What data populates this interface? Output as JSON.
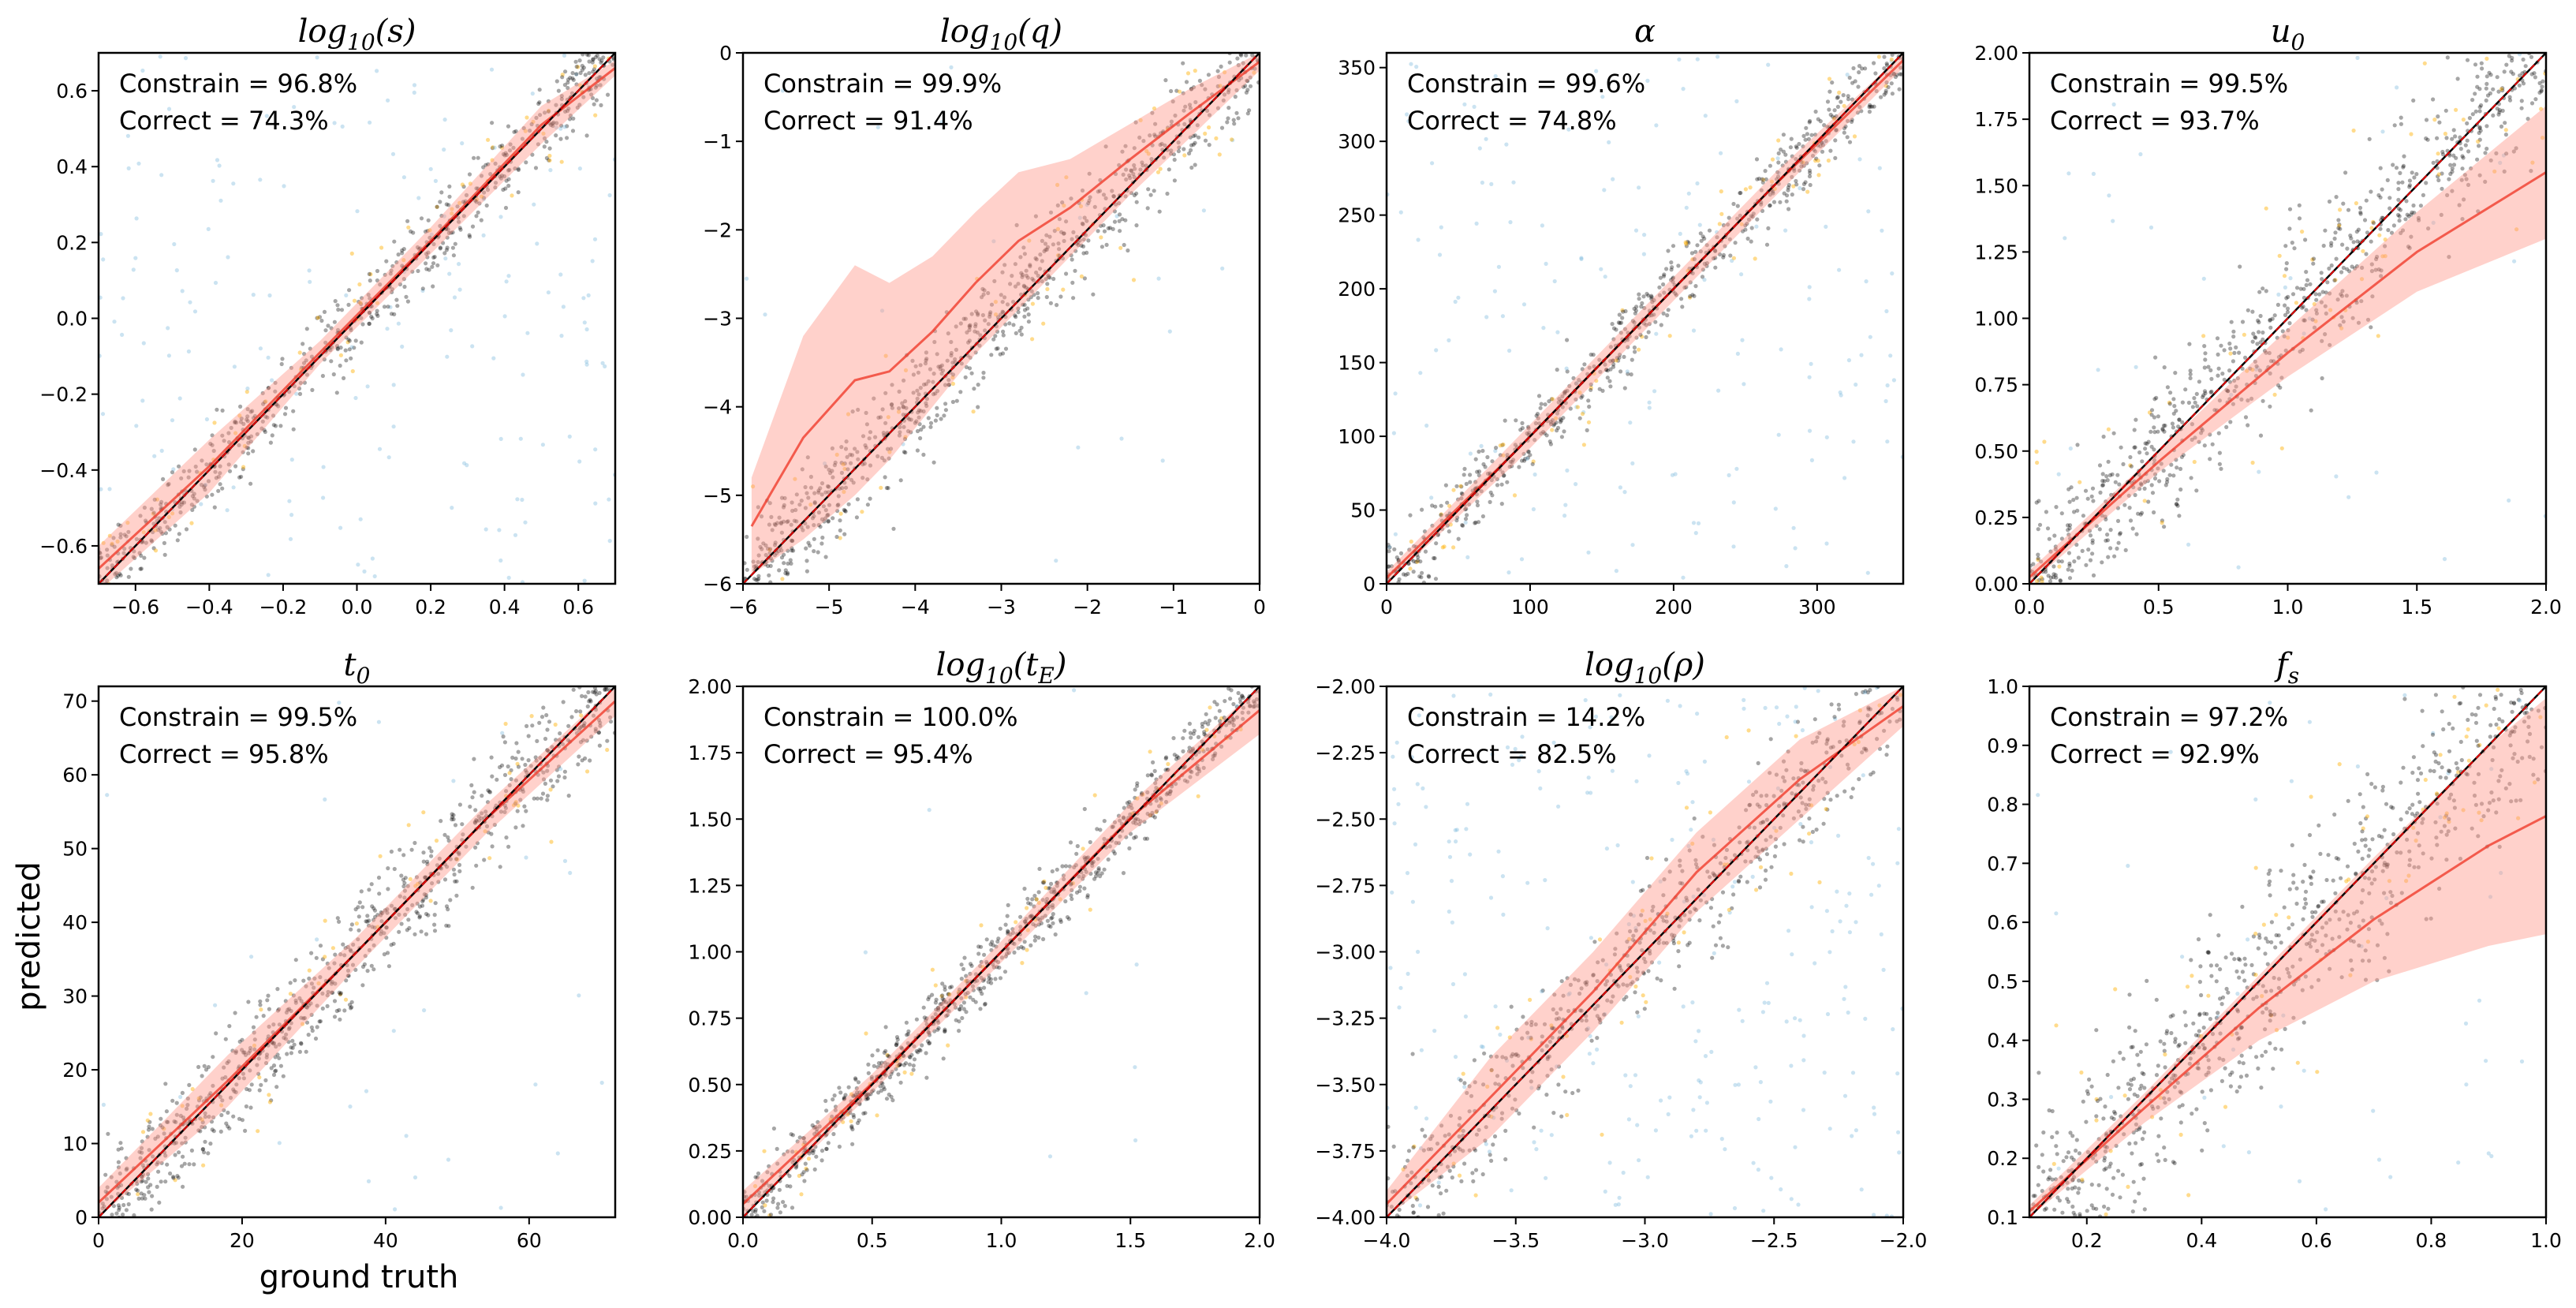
{
  "figure": {
    "xlabel": "ground truth",
    "ylabel": "predicted",
    "colors": {
      "points_dark": "#000000",
      "points_orange": "#ffb000",
      "points_blue": "#6baed6",
      "band": "#ff9a8c",
      "band_inner": "#f03c2c",
      "line": "#e00000",
      "diag": "#000000"
    }
  },
  "chart_data": [
    {
      "type": "scatter",
      "title": "log10(s)",
      "title_main": "log",
      "title_sub": "10",
      "title_arg": "(s)",
      "xlim": [
        -0.7,
        0.7
      ],
      "ylim": [
        -0.7,
        0.7
      ],
      "xticks": [
        -0.6,
        -0.4,
        -0.2,
        0.0,
        0.2,
        0.4,
        0.6
      ],
      "xticklabels": [
        "−0.6",
        "−0.4",
        "−0.2",
        "0.0",
        "0.2",
        "0.4",
        "0.6"
      ],
      "yticks": [
        -0.6,
        -0.4,
        -0.2,
        0.0,
        0.2,
        0.4,
        0.6
      ],
      "yticklabels": [
        "−0.6",
        "−0.4",
        "−0.2",
        "0.0",
        "0.2",
        "0.4",
        "0.6"
      ],
      "constrain_label": "Constrain =  96.8%",
      "correct_label": "Correct = 74.3%",
      "constrain": 96.8,
      "correct": 74.3,
      "band": {
        "x": [
          -0.7,
          -0.4,
          -0.1,
          0.2,
          0.5,
          0.7
        ],
        "lo": [
          -0.72,
          -0.46,
          -0.12,
          0.17,
          0.46,
          0.64
        ],
        "hi": [
          -0.6,
          -0.32,
          -0.06,
          0.24,
          0.56,
          0.68
        ]
      },
      "scatter_spread": 0.05,
      "blue_fraction": 0.25
    },
    {
      "type": "scatter",
      "title": "log10(q)",
      "title_main": "log",
      "title_sub": "10",
      "title_arg": "(q)",
      "xlim": [
        -6,
        0
      ],
      "ylim": [
        -6,
        0
      ],
      "xticks": [
        -6,
        -5,
        -4,
        -3,
        -2,
        -1,
        0
      ],
      "xticklabels": [
        "−6",
        "−5",
        "−4",
        "−3",
        "−2",
        "−1",
        "0"
      ],
      "yticks": [
        -6,
        -5,
        -4,
        -3,
        -2,
        -1,
        0
      ],
      "yticklabels": [
        "−6",
        "−5",
        "−4",
        "−3",
        "−2",
        "−1",
        "0"
      ],
      "constrain_label": "Constrain =  99.9%",
      "correct_label": "Correct = 91.4%",
      "constrain": 99.9,
      "correct": 91.4,
      "band": {
        "x": [
          -5.9,
          -5.3,
          -4.7,
          -4.3,
          -3.8,
          -3.3,
          -2.8,
          -2.2,
          -1.5,
          -0.8,
          0
        ],
        "lo": [
          -5.9,
          -5.5,
          -5.0,
          -4.6,
          -4.0,
          -3.4,
          -2.9,
          -2.3,
          -1.6,
          -0.95,
          -0.2
        ],
        "hi": [
          -4.8,
          -3.2,
          -2.4,
          -2.6,
          -2.3,
          -1.8,
          -1.35,
          -1.2,
          -0.8,
          -0.4,
          0
        ]
      },
      "scatter_spread": 0.3,
      "blue_fraction": 0.02
    },
    {
      "type": "scatter",
      "title": "α",
      "title_main": "α",
      "title_sub": "",
      "title_arg": "",
      "xlim": [
        0,
        360
      ],
      "ylim": [
        0,
        360
      ],
      "xticks": [
        0,
        100,
        200,
        300
      ],
      "xticklabels": [
        "0",
        "100",
        "200",
        "300"
      ],
      "yticks": [
        0,
        50,
        100,
        150,
        200,
        250,
        300,
        350
      ],
      "yticklabels": [
        "0",
        "50",
        "100",
        "150",
        "200",
        "250",
        "300",
        "350"
      ],
      "constrain_label": "Constrain =  99.6%",
      "correct_label": "Correct = 74.8%",
      "constrain": 99.6,
      "correct": 74.8,
      "band": {
        "x": [
          0,
          90,
          180,
          270,
          360
        ],
        "lo": [
          0,
          82,
          172,
          262,
          350
        ],
        "hi": [
          8,
          98,
          188,
          278,
          360
        ]
      },
      "scatter_spread": 12,
      "blue_fraction": 0.2
    },
    {
      "type": "scatter",
      "title": "u0",
      "title_main": "u",
      "title_sub": "0",
      "title_arg": "",
      "xlim": [
        0,
        2
      ],
      "ylim": [
        0,
        2
      ],
      "xticks": [
        0,
        0.5,
        1.0,
        1.5,
        2.0
      ],
      "xticklabels": [
        "0.0",
        "0.5",
        "1.0",
        "1.5",
        "2.0"
      ],
      "yticks": [
        0,
        0.25,
        0.5,
        0.75,
        1.0,
        1.25,
        1.5,
        1.75,
        2.0
      ],
      "yticklabels": [
        "0.00",
        "0.25",
        "0.50",
        "0.75",
        "1.00",
        "1.25",
        "1.50",
        "1.75",
        "2.00"
      ],
      "constrain_label": "Constrain =  99.5%",
      "correct_label": "Correct = 93.7%",
      "constrain": 99.5,
      "correct": 93.7,
      "band": {
        "x": [
          0,
          0.5,
          1.0,
          1.5,
          2.0
        ],
        "lo": [
          0,
          0.42,
          0.78,
          1.1,
          1.3
        ],
        "hi": [
          0.05,
          0.5,
          0.96,
          1.4,
          1.8
        ]
      },
      "scatter_spread": 0.14,
      "blue_fraction": 0.03
    },
    {
      "type": "scatter",
      "title": "t0",
      "title_main": "t",
      "title_sub": "0",
      "title_arg": "",
      "xlim": [
        0,
        72
      ],
      "ylim": [
        0,
        72
      ],
      "xticks": [
        0,
        20,
        40,
        60
      ],
      "xticklabels": [
        "0",
        "20",
        "40",
        "60"
      ],
      "yticks": [
        0,
        10,
        20,
        30,
        40,
        50,
        60,
        70
      ],
      "yticklabels": [
        "0",
        "10",
        "20",
        "30",
        "40",
        "50",
        "60",
        "70"
      ],
      "constrain_label": "Constrain =  99.5%",
      "correct_label": "Correct = 95.8%",
      "constrain": 99.5,
      "correct": 95.8,
      "band": {
        "x": [
          0,
          18,
          36,
          54,
          72
        ],
        "lo": [
          0,
          15,
          34,
          52,
          68
        ],
        "hi": [
          4,
          22,
          38,
          56,
          72
        ]
      },
      "scatter_spread": 3.5,
      "blue_fraction": 0.03
    },
    {
      "type": "scatter",
      "title": "log10(tE)",
      "title_main": "log",
      "title_sub": "10",
      "title_arg": "(t",
      "title_arg_sub": "E",
      "title_arg_end": ")",
      "xlim": [
        0,
        2
      ],
      "ylim": [
        0,
        2
      ],
      "xticks": [
        0,
        0.5,
        1.0,
        1.5,
        2.0
      ],
      "xticklabels": [
        "0.0",
        "0.5",
        "1.0",
        "1.5",
        "2.0"
      ],
      "yticks": [
        0,
        0.25,
        0.5,
        0.75,
        1.0,
        1.25,
        1.5,
        1.75,
        2.0
      ],
      "yticklabels": [
        "0.00",
        "0.25",
        "0.50",
        "0.75",
        "1.00",
        "1.25",
        "1.50",
        "1.75",
        "2.00"
      ],
      "constrain_label": "Constrain =  100.0%",
      "correct_label": "Correct = 95.4%",
      "constrain": 100.0,
      "correct": 95.4,
      "band": {
        "x": [
          0,
          0.5,
          1.0,
          1.5,
          2.0
        ],
        "lo": [
          0,
          0.47,
          0.96,
          1.45,
          1.82
        ],
        "hi": [
          0.1,
          0.54,
          1.04,
          1.56,
          2.0
        ]
      },
      "scatter_spread": 0.06,
      "blue_fraction": 0.01
    },
    {
      "type": "scatter",
      "title": "log10(ρ)",
      "title_main": "log",
      "title_sub": "10",
      "title_arg": "(ρ)",
      "xlim": [
        -4,
        -2
      ],
      "ylim": [
        -4,
        -2
      ],
      "xticks": [
        -4.0,
        -3.5,
        -3.0,
        -2.5,
        -2.0
      ],
      "xticklabels": [
        "−4.0",
        "−3.5",
        "−3.0",
        "−2.5",
        "−2.0"
      ],
      "yticks": [
        -4.0,
        -3.75,
        -3.5,
        -3.25,
        -3.0,
        -2.75,
        -2.5,
        -2.25,
        -2.0
      ],
      "yticklabels": [
        "−4.00",
        "−3.75",
        "−3.50",
        "−3.25",
        "−3.00",
        "−2.75",
        "−2.50",
        "−2.25",
        "−2.00"
      ],
      "constrain_label": "Constrain =  14.2%",
      "correct_label": "Correct = 82.5%",
      "constrain": 14.2,
      "correct": 82.5,
      "band": {
        "x": [
          -4,
          -3.6,
          -3.2,
          -2.8,
          -2.4,
          -2.0
        ],
        "lo": [
          -4.0,
          -3.7,
          -3.3,
          -2.85,
          -2.5,
          -2.15
        ],
        "hi": [
          -3.9,
          -3.4,
          -3.0,
          -2.55,
          -2.2,
          -2.0
        ]
      },
      "scatter_spread": 0.12,
      "blue_fraction": 0.3
    },
    {
      "type": "scatter",
      "title": "fs",
      "title_main": "f",
      "title_sub": "s",
      "title_arg": "",
      "xlim": [
        0.1,
        1.0
      ],
      "ylim": [
        0.1,
        1.0
      ],
      "xticks": [
        0.2,
        0.4,
        0.6,
        0.8,
        1.0
      ],
      "xticklabels": [
        "0.2",
        "0.4",
        "0.6",
        "0.8",
        "1.0"
      ],
      "yticks": [
        0.1,
        0.2,
        0.3,
        0.4,
        0.5,
        0.6,
        0.7,
        0.8,
        0.9,
        1.0
      ],
      "yticklabels": [
        "0.1",
        "0.2",
        "0.3",
        "0.4",
        "0.5",
        "0.6",
        "0.7",
        "0.8",
        "0.9",
        "1.0"
      ],
      "constrain_label": "Constrain =  97.2%",
      "correct_label": "Correct = 92.9%",
      "constrain": 97.2,
      "correct": 92.9,
      "band": {
        "x": [
          0.1,
          0.3,
          0.5,
          0.7,
          0.9,
          1.0
        ],
        "lo": [
          0.1,
          0.26,
          0.4,
          0.5,
          0.56,
          0.58
        ],
        "hi": [
          0.12,
          0.31,
          0.51,
          0.71,
          0.9,
          0.98
        ]
      },
      "scatter_spread": 0.08,
      "blue_fraction": 0.04
    }
  ]
}
